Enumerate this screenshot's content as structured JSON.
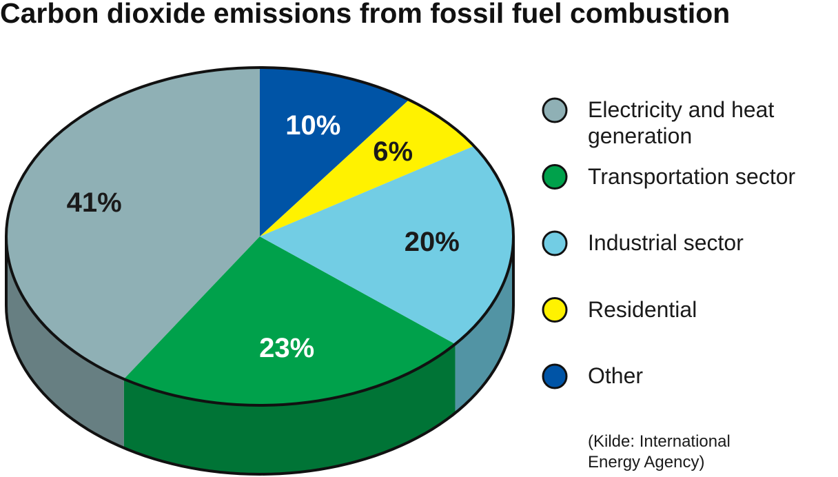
{
  "chart_data": {
    "type": "pie",
    "title": "Carbon dioxide emissions from fossil fuel combustion",
    "categories": [
      "Electricity and heat generation",
      "Transportation sector",
      "Industrial sector",
      "Residential",
      "Other"
    ],
    "values": [
      41,
      23,
      20,
      6,
      10
    ],
    "value_labels": [
      "41%",
      "23%",
      "20%",
      "6%",
      "10%"
    ],
    "colors": [
      "#8fb0b5",
      "#00a14b",
      "#72cde4",
      "#fff200",
      "#0054a6"
    ],
    "source": "(Kilde: International Energy Agency)"
  }
}
